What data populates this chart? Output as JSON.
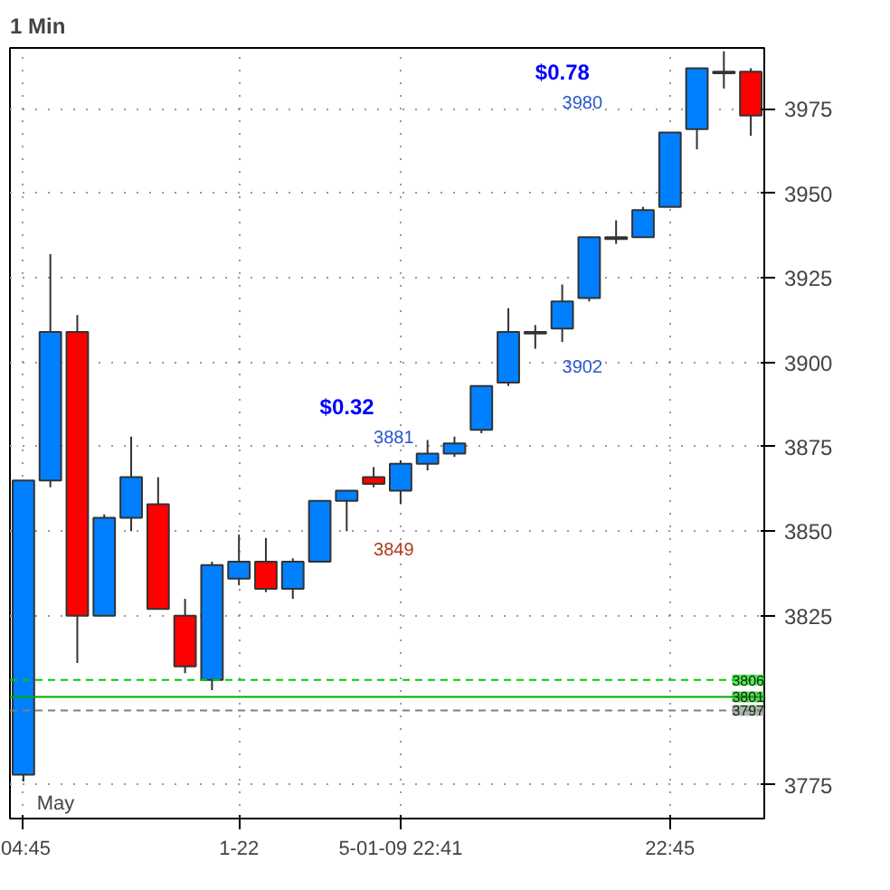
{
  "chart_data": {
    "type": "candlestick",
    "title": "1 Min",
    "categories": [
      null,
      null,
      null,
      null,
      null,
      null,
      null,
      null,
      null,
      null,
      null,
      null,
      null,
      null,
      null,
      null,
      null,
      null,
      null,
      null,
      null,
      null,
      null,
      null,
      null,
      null,
      null,
      null
    ],
    "ohlc": [
      [
        3778,
        3865,
        3776,
        3865
      ],
      [
        3865,
        3932,
        3863,
        3909
      ],
      [
        3909,
        3914,
        3811,
        3825
      ],
      [
        3825,
        3855,
        3825,
        3854
      ],
      [
        3854,
        3878,
        3850,
        3866
      ],
      [
        3858,
        3866,
        3827,
        3827
      ],
      [
        3825,
        3830,
        3808,
        3810
      ],
      [
        3806,
        3841,
        3803,
        3840
      ],
      [
        3836,
        3849,
        3834,
        3841
      ],
      [
        3841,
        3848,
        3832,
        3833
      ],
      [
        3833,
        3842,
        3830,
        3841
      ],
      [
        3841,
        3859,
        3841,
        3859
      ],
      [
        3859,
        3862,
        3850,
        3862
      ],
      [
        3866,
        3869,
        3863,
        3864
      ],
      [
        3862,
        3871,
        3858,
        3870
      ],
      [
        3870,
        3877,
        3868,
        3873
      ],
      [
        3873,
        3878,
        3872,
        3876
      ],
      [
        3880,
        3893,
        3879,
        3893
      ],
      [
        3894,
        3916,
        3893,
        3909
      ],
      [
        3909,
        3911,
        3904,
        3909
      ],
      [
        3910,
        3923,
        3906,
        3918
      ],
      [
        3919,
        3937,
        3918,
        3937
      ],
      [
        3937,
        3942,
        3935,
        3937
      ],
      [
        3937,
        3946,
        3937,
        3945
      ],
      [
        3946,
        3968,
        3946,
        3968
      ],
      [
        3969,
        3987,
        3963,
        3987
      ],
      [
        3986,
        3992,
        3981,
        3986
      ],
      [
        3986,
        3987,
        3967,
        3973
      ]
    ],
    "colors": [
      "#0080ff",
      "#0080ff",
      "#ff0000",
      "#0080ff",
      "#0080ff",
      "#ff0000",
      "#ff0000",
      "#0080ff",
      "#0080ff",
      "#ff0000",
      "#0080ff",
      "#0080ff",
      "#0080ff",
      "#ff0000",
      "#0080ff",
      "#0080ff",
      "#0080ff",
      "#0080ff",
      "#0080ff",
      "#ff0000",
      "#0080ff",
      "#0080ff",
      "#0080ff",
      "#0080ff",
      "#0080ff",
      "#0080ff",
      "#ff0000",
      "#ff0000"
    ],
    "ylim": [
      3765,
      3993
    ],
    "yticks": [
      3775,
      3825,
      3850,
      3875,
      3900,
      3925,
      3950,
      3975
    ],
    "grid": true,
    "ref_lines": [
      {
        "axis": "y",
        "value": 3806,
        "label": "3806",
        "color": "#00cc00",
        "line_style": "dashed"
      },
      {
        "axis": "y",
        "value": 3801,
        "label": "3801",
        "color": "#00aa00",
        "line_style": "solid"
      },
      {
        "axis": "y",
        "value": 3797,
        "label": "3797",
        "color": "#808080",
        "line_style": "dashed"
      }
    ],
    "annotations": [
      "$0.32",
      "3881",
      "3849",
      "$0.78",
      "3980",
      "3902",
      "May",
      "04:45",
      "1-22",
      "5-01-09 22:41",
      "22:45"
    ]
  }
}
